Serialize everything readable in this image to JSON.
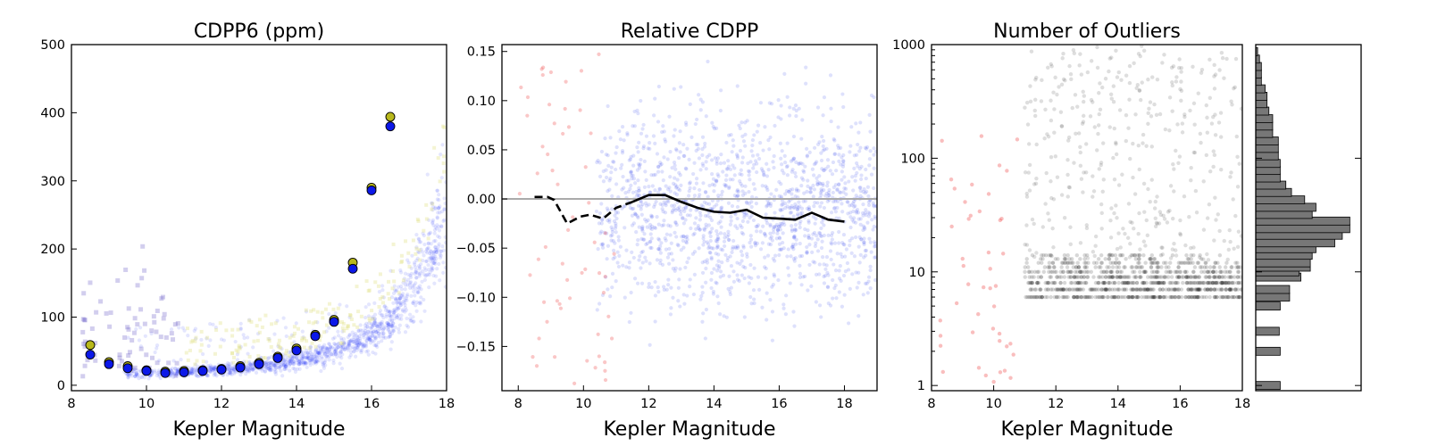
{
  "chart_data": [
    {
      "type": "scatter",
      "title": "CDPP6 (ppm)",
      "xlabel": "Kepler Magnitude",
      "ylabel": "",
      "xlim": [
        8,
        18
      ],
      "ylim": [
        -8,
        500
      ],
      "xticks": [
        8,
        10,
        12,
        14,
        16,
        18
      ],
      "yticks": [
        0,
        100,
        200,
        300,
        400,
        500
      ],
      "colors": {
        "cloud": "#2e3ff7",
        "outlier": "#6a5cc8",
        "yellow_scatter": "#e0e080",
        "yellow_median": "#b8b81c",
        "blue_median": "#0c18e8"
      },
      "series": [
        {
          "kind": "median-yellow",
          "x": [
            8.5,
            9.0,
            9.5,
            10.0,
            10.5,
            11.0,
            11.5,
            12.0,
            12.5,
            13.0,
            13.5,
            14.0,
            14.5,
            15.0,
            15.5,
            16.0,
            16.5
          ],
          "y": [
            59,
            34,
            28,
            22,
            20,
            21,
            22,
            24,
            28,
            33,
            42,
            54,
            74,
            96,
            180,
            290,
            394
          ]
        },
        {
          "kind": "median-blue",
          "x": [
            8.5,
            9.0,
            9.5,
            10.0,
            10.5,
            11.0,
            11.5,
            12.0,
            12.5,
            13.0,
            13.5,
            14.0,
            14.5,
            15.0,
            15.5,
            16.0,
            16.5
          ],
          "y": [
            45,
            31,
            25,
            21,
            18,
            19,
            21,
            23,
            26,
            31,
            40,
            51,
            72,
            93,
            171,
            286,
            380
          ]
        }
      ]
    },
    {
      "type": "scatter",
      "title": "Relative CDPP",
      "xlabel": "Kepler Magnitude",
      "ylabel": "",
      "xlim": [
        7.5,
        19
      ],
      "ylim": [
        -0.195,
        0.157
      ],
      "xticks": [
        8,
        10,
        12,
        14,
        16,
        18
      ],
      "yticks": [
        0.15,
        0.1,
        0.05,
        0.0,
        -0.05,
        -0.1,
        -0.15
      ],
      "ytick_labels": [
        "0.15",
        "0.10",
        "0.05",
        "0.00",
        "−0.05",
        "−0.10",
        "−0.15"
      ],
      "zero_line": 0,
      "colors": {
        "cloud": "#3344ee",
        "faint": "#ee4444",
        "line": "#000000",
        "zero_line": "#aaaaaa"
      },
      "series": [
        {
          "kind": "median-dashed",
          "x": [
            8.5,
            8.9,
            9.1,
            9.5,
            9.9,
            10.2,
            10.6,
            11.0,
            11.5
          ],
          "y": [
            0.002,
            0.002,
            -0.001,
            -0.025,
            -0.018,
            -0.016,
            -0.02,
            -0.009,
            -0.003
          ]
        },
        {
          "kind": "median-solid",
          "x": [
            11.5,
            12.0,
            12.5,
            13.0,
            13.5,
            14.0,
            14.5,
            15.0,
            15.5,
            16.0,
            16.5,
            17.0,
            17.5,
            18.0
          ],
          "y": [
            -0.003,
            0.004,
            0.004,
            -0.003,
            -0.009,
            -0.013,
            -0.014,
            -0.011,
            -0.019,
            -0.02,
            -0.021,
            -0.014,
            -0.021,
            -0.023
          ]
        }
      ]
    },
    {
      "type": "scatter",
      "title": "Number of Outliers",
      "xlabel": "Kepler Magnitude",
      "ylabel": "",
      "xlim": [
        8,
        18
      ],
      "ylim": [
        0.9,
        1000
      ],
      "yscale": "log",
      "xticks": [
        8,
        10,
        12,
        14,
        16,
        18
      ],
      "yticks": [
        1,
        10,
        100,
        1000
      ],
      "colors": {
        "points": "#222222",
        "faint": "#ee4444"
      }
    },
    {
      "type": "bar",
      "orientation": "horizontal",
      "ylim": [
        0.9,
        1000
      ],
      "yscale": "log",
      "colors": {
        "bar": "#777777"
      },
      "bins": [
        1,
        2,
        3,
        5,
        6,
        7,
        8,
        9,
        10,
        11,
        12,
        14,
        16,
        18,
        21,
        24,
        28,
        32,
        37,
        43,
        50,
        58,
        67,
        78,
        90,
        105,
        122,
        142,
        165,
        192,
        223,
        260,
        302,
        351,
        408,
        475,
        552,
        642,
        746,
        867
      ],
      "counts": [
        130,
        130,
        125,
        130,
        180,
        180,
        0,
        240,
        230,
        290,
        290,
        300,
        320,
        420,
        460,
        500,
        500,
        300,
        320,
        260,
        190,
        160,
        130,
        130,
        130,
        120,
        120,
        120,
        90,
        90,
        90,
        70,
        60,
        60,
        50,
        30,
        30,
        30,
        20,
        10
      ]
    }
  ]
}
